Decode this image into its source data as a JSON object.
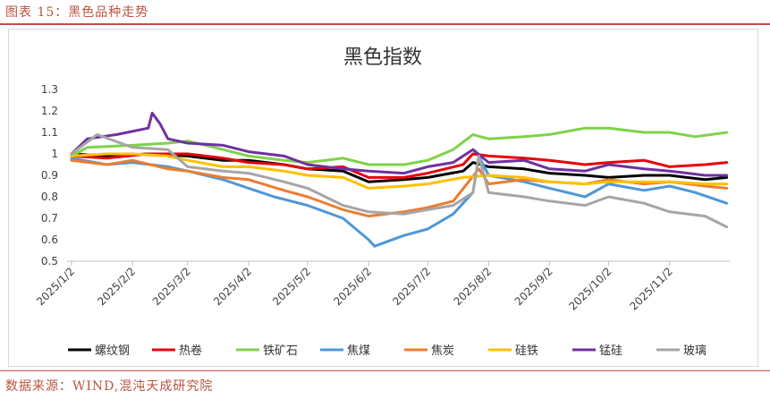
{
  "caption": "图表 15：黑色品种走势",
  "source": "数据来源：WIND,混沌天成研究院",
  "colors": {
    "accent": "#c0504d",
    "螺纹钢": "#000000",
    "热卷": "#e8000b",
    "铁矿石": "#7ed348",
    "焦煤": "#4f97d8",
    "焦炭": "#ec7d31",
    "硅铁": "#ffc000",
    "锰硅": "#7030a0",
    "玻璃": "#a6a6a6"
  },
  "chart_data": {
    "type": "line",
    "title": "黑色指数",
    "ylim": [
      0.5,
      1.3
    ],
    "yticks": [
      "1.3",
      "1.2",
      "1.1",
      "1",
      "0.9",
      "0.8",
      "0.7",
      "0.6",
      "0.5"
    ],
    "x_ticks": [
      "2025/1/2",
      "2025/2/2",
      "2025/3/2",
      "2025/4/2",
      "2025/5/2",
      "2025/6/2",
      "2025/7/2",
      "2025/8/2",
      "2025/9/2",
      "2025/10/2",
      "2025/11/2"
    ],
    "legend_position": "bottom",
    "series": [
      {
        "name": "螺纹钢",
        "color": "#000000",
        "points": [
          [
            "2025/1/2",
            1.0
          ],
          [
            "2025/1/20",
            0.99
          ],
          [
            "2025/2/10",
            1.0
          ],
          [
            "2025/3/2",
            0.99
          ],
          [
            "2025/3/20",
            0.97
          ],
          [
            "2025/4/2",
            0.97
          ],
          [
            "2025/4/20",
            0.95
          ],
          [
            "2025/5/2",
            0.93
          ],
          [
            "2025/5/20",
            0.92
          ],
          [
            "2025/6/2",
            0.87
          ],
          [
            "2025/6/20",
            0.88
          ],
          [
            "2025/7/2",
            0.89
          ],
          [
            "2025/7/20",
            0.92
          ],
          [
            "2025/7/25",
            0.96
          ],
          [
            "2025/8/2",
            0.94
          ],
          [
            "2025/8/20",
            0.93
          ],
          [
            "2025/9/2",
            0.91
          ],
          [
            "2025/9/20",
            0.9
          ],
          [
            "2025/10/2",
            0.89
          ],
          [
            "2025/10/20",
            0.9
          ],
          [
            "2025/11/2",
            0.9
          ],
          [
            "2025/11/20",
            0.88
          ],
          [
            "2025/12/1",
            0.89
          ]
        ]
      },
      {
        "name": "热卷",
        "color": "#e8000b",
        "points": [
          [
            "2025/1/2",
            0.99
          ],
          [
            "2025/1/20",
            0.98
          ],
          [
            "2025/2/10",
            1.0
          ],
          [
            "2025/3/2",
            1.0
          ],
          [
            "2025/3/20",
            0.98
          ],
          [
            "2025/4/2",
            0.96
          ],
          [
            "2025/4/20",
            0.95
          ],
          [
            "2025/5/2",
            0.93
          ],
          [
            "2025/5/20",
            0.94
          ],
          [
            "2025/6/2",
            0.89
          ],
          [
            "2025/6/20",
            0.89
          ],
          [
            "2025/7/2",
            0.91
          ],
          [
            "2025/7/20",
            0.95
          ],
          [
            "2025/7/25",
            1.0
          ],
          [
            "2025/8/2",
            0.99
          ],
          [
            "2025/8/20",
            0.98
          ],
          [
            "2025/9/2",
            0.97
          ],
          [
            "2025/9/20",
            0.95
          ],
          [
            "2025/10/2",
            0.96
          ],
          [
            "2025/10/20",
            0.97
          ],
          [
            "2025/11/2",
            0.94
          ],
          [
            "2025/11/20",
            0.95
          ],
          [
            "2025/12/1",
            0.96
          ]
        ]
      },
      {
        "name": "铁矿石",
        "color": "#7ed348",
        "points": [
          [
            "2025/1/2",
            0.99
          ],
          [
            "2025/1/10",
            1.03
          ],
          [
            "2025/2/2",
            1.04
          ],
          [
            "2025/2/20",
            1.05
          ],
          [
            "2025/3/2",
            1.06
          ],
          [
            "2025/3/20",
            1.02
          ],
          [
            "2025/4/2",
            0.99
          ],
          [
            "2025/4/20",
            0.97
          ],
          [
            "2025/5/2",
            0.96
          ],
          [
            "2025/5/20",
            0.98
          ],
          [
            "2025/6/2",
            0.95
          ],
          [
            "2025/6/20",
            0.95
          ],
          [
            "2025/7/2",
            0.97
          ],
          [
            "2025/7/15",
            1.02
          ],
          [
            "2025/7/25",
            1.09
          ],
          [
            "2025/8/2",
            1.07
          ],
          [
            "2025/8/20",
            1.08
          ],
          [
            "2025/9/2",
            1.09
          ],
          [
            "2025/9/20",
            1.12
          ],
          [
            "2025/10/2",
            1.12
          ],
          [
            "2025/10/20",
            1.1
          ],
          [
            "2025/11/2",
            1.1
          ],
          [
            "2025/11/15",
            1.08
          ],
          [
            "2025/12/1",
            1.1
          ]
        ]
      },
      {
        "name": "焦煤",
        "color": "#4f97d8",
        "points": [
          [
            "2025/1/2",
            0.98
          ],
          [
            "2025/1/20",
            0.95
          ],
          [
            "2025/2/2",
            0.96
          ],
          [
            "2025/2/20",
            0.94
          ],
          [
            "2025/3/2",
            0.92
          ],
          [
            "2025/3/20",
            0.88
          ],
          [
            "2025/4/2",
            0.84
          ],
          [
            "2025/4/15",
            0.8
          ],
          [
            "2025/5/2",
            0.76
          ],
          [
            "2025/5/20",
            0.7
          ],
          [
            "2025/6/2",
            0.6
          ],
          [
            "2025/6/5",
            0.57
          ],
          [
            "2025/6/20",
            0.62
          ],
          [
            "2025/7/2",
            0.65
          ],
          [
            "2025/7/15",
            0.72
          ],
          [
            "2025/7/25",
            0.82
          ],
          [
            "2025/7/28",
            0.99
          ],
          [
            "2025/8/2",
            0.9
          ],
          [
            "2025/8/20",
            0.87
          ],
          [
            "2025/9/2",
            0.84
          ],
          [
            "2025/9/20",
            0.8
          ],
          [
            "2025/10/2",
            0.86
          ],
          [
            "2025/10/20",
            0.83
          ],
          [
            "2025/11/2",
            0.85
          ],
          [
            "2025/11/15",
            0.82
          ],
          [
            "2025/12/1",
            0.77
          ]
        ]
      },
      {
        "name": "焦炭",
        "color": "#ec7d31",
        "points": [
          [
            "2025/1/2",
            0.97
          ],
          [
            "2025/1/20",
            0.95
          ],
          [
            "2025/2/2",
            0.97
          ],
          [
            "2025/2/20",
            0.93
          ],
          [
            "2025/3/2",
            0.92
          ],
          [
            "2025/3/20",
            0.89
          ],
          [
            "2025/4/2",
            0.88
          ],
          [
            "2025/4/20",
            0.83
          ],
          [
            "2025/5/2",
            0.8
          ],
          [
            "2025/5/20",
            0.74
          ],
          [
            "2025/6/2",
            0.71
          ],
          [
            "2025/6/20",
            0.73
          ],
          [
            "2025/7/2",
            0.75
          ],
          [
            "2025/7/15",
            0.78
          ],
          [
            "2025/7/28",
            0.93
          ],
          [
            "2025/8/2",
            0.86
          ],
          [
            "2025/8/20",
            0.88
          ],
          [
            "2025/9/2",
            0.87
          ],
          [
            "2025/9/20",
            0.86
          ],
          [
            "2025/10/2",
            0.88
          ],
          [
            "2025/10/20",
            0.86
          ],
          [
            "2025/11/2",
            0.87
          ],
          [
            "2025/11/20",
            0.85
          ],
          [
            "2025/12/1",
            0.84
          ]
        ]
      },
      {
        "name": "硅铁",
        "color": "#ffc000",
        "points": [
          [
            "2025/1/2",
            0.99
          ],
          [
            "2025/1/20",
            1.0
          ],
          [
            "2025/2/2",
            1.0
          ],
          [
            "2025/2/20",
            0.99
          ],
          [
            "2025/3/2",
            0.97
          ],
          [
            "2025/3/20",
            0.94
          ],
          [
            "2025/4/2",
            0.94
          ],
          [
            "2025/4/20",
            0.92
          ],
          [
            "2025/5/2",
            0.9
          ],
          [
            "2025/5/20",
            0.89
          ],
          [
            "2025/6/2",
            0.84
          ],
          [
            "2025/6/20",
            0.85
          ],
          [
            "2025/7/2",
            0.86
          ],
          [
            "2025/7/20",
            0.89
          ],
          [
            "2025/8/2",
            0.9
          ],
          [
            "2025/8/20",
            0.89
          ],
          [
            "2025/9/2",
            0.87
          ],
          [
            "2025/9/20",
            0.86
          ],
          [
            "2025/10/2",
            0.87
          ],
          [
            "2025/10/20",
            0.87
          ],
          [
            "2025/11/2",
            0.87
          ],
          [
            "2025/11/20",
            0.86
          ],
          [
            "2025/12/1",
            0.86
          ]
        ]
      },
      {
        "name": "锰硅",
        "color": "#7030a0",
        "points": [
          [
            "2025/1/2",
            1.0
          ],
          [
            "2025/1/10",
            1.07
          ],
          [
            "2025/1/25",
            1.09
          ],
          [
            "2025/2/10",
            1.12
          ],
          [
            "2025/2/12",
            1.19
          ],
          [
            "2025/2/16",
            1.14
          ],
          [
            "2025/2/20",
            1.07
          ],
          [
            "2025/3/2",
            1.05
          ],
          [
            "2025/3/20",
            1.04
          ],
          [
            "2025/4/2",
            1.01
          ],
          [
            "2025/4/20",
            0.99
          ],
          [
            "2025/5/2",
            0.95
          ],
          [
            "2025/5/20",
            0.93
          ],
          [
            "2025/6/2",
            0.92
          ],
          [
            "2025/6/20",
            0.91
          ],
          [
            "2025/7/2",
            0.94
          ],
          [
            "2025/7/15",
            0.96
          ],
          [
            "2025/7/25",
            1.02
          ],
          [
            "2025/8/2",
            0.96
          ],
          [
            "2025/8/20",
            0.97
          ],
          [
            "2025/9/2",
            0.93
          ],
          [
            "2025/9/20",
            0.92
          ],
          [
            "2025/10/2",
            0.95
          ],
          [
            "2025/10/20",
            0.93
          ],
          [
            "2025/11/2",
            0.92
          ],
          [
            "2025/11/20",
            0.9
          ],
          [
            "2025/12/1",
            0.9
          ]
        ]
      },
      {
        "name": "玻璃",
        "color": "#a6a6a6",
        "points": [
          [
            "2025/1/2",
            1.0
          ],
          [
            "2025/1/15",
            1.09
          ],
          [
            "2025/2/2",
            1.03
          ],
          [
            "2025/2/20",
            1.02
          ],
          [
            "2025/3/2",
            0.94
          ],
          [
            "2025/3/20",
            0.92
          ],
          [
            "2025/4/2",
            0.91
          ],
          [
            "2025/4/20",
            0.87
          ],
          [
            "2025/5/2",
            0.84
          ],
          [
            "2025/5/20",
            0.76
          ],
          [
            "2025/6/2",
            0.73
          ],
          [
            "2025/6/20",
            0.72
          ],
          [
            "2025/7/2",
            0.74
          ],
          [
            "2025/7/15",
            0.76
          ],
          [
            "2025/7/25",
            0.82
          ],
          [
            "2025/7/28",
            0.99
          ],
          [
            "2025/8/2",
            0.82
          ],
          [
            "2025/8/20",
            0.8
          ],
          [
            "2025/9/2",
            0.78
          ],
          [
            "2025/9/20",
            0.76
          ],
          [
            "2025/10/2",
            0.8
          ],
          [
            "2025/10/20",
            0.77
          ],
          [
            "2025/11/2",
            0.73
          ],
          [
            "2025/11/20",
            0.71
          ],
          [
            "2025/12/1",
            0.66
          ]
        ]
      }
    ]
  }
}
